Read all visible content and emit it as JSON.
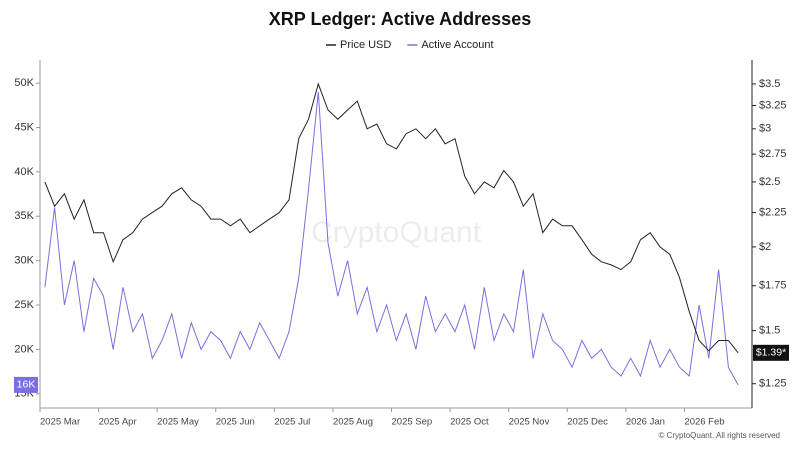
{
  "chart_data": {
    "type": "line",
    "title": "XRP Ledger: Active Addresses",
    "watermark": "CryptoQuant",
    "copyright": "© CryptoQuant. All rights reserved",
    "categories": [
      "2025 Mar",
      null,
      null,
      null,
      null,
      null,
      "2025 Apr",
      null,
      null,
      null,
      null,
      null,
      "2025 May",
      null,
      null,
      null,
      null,
      null,
      "2025 Jun",
      null,
      null,
      null,
      null,
      null,
      "2025 Jul",
      null,
      null,
      null,
      null,
      null,
      "2025 Aug",
      null,
      null,
      null,
      null,
      null,
      "2025 Sep",
      null,
      null,
      null,
      null,
      null,
      "2025 Oct",
      null,
      null,
      null,
      null,
      null,
      "2025 Nov",
      null,
      null,
      null,
      null,
      null,
      "2025 Dec",
      null,
      null,
      null,
      null,
      null,
      "2026 Jan",
      null,
      null,
      null,
      null,
      null,
      "2026 Feb",
      null,
      null,
      null,
      null,
      null
    ],
    "series": [
      {
        "name": "Price USD",
        "color": "#222222",
        "axis": "y2",
        "values": [
          2.5,
          2.3,
          2.4,
          2.2,
          2.35,
          2.1,
          2.1,
          1.9,
          2.05,
          2.1,
          2.2,
          2.25,
          2.3,
          2.4,
          2.45,
          2.35,
          2.3,
          2.2,
          2.2,
          2.15,
          2.2,
          2.1,
          2.15,
          2.2,
          2.25,
          2.35,
          2.9,
          3.1,
          3.5,
          3.2,
          3.1,
          3.2,
          3.3,
          3.0,
          3.05,
          2.85,
          2.8,
          2.95,
          3.0,
          2.9,
          3.0,
          2.85,
          2.9,
          2.55,
          2.4,
          2.5,
          2.45,
          2.6,
          2.5,
          2.3,
          2.4,
          2.1,
          2.2,
          2.15,
          2.15,
          2.05,
          1.95,
          1.9,
          1.88,
          1.85,
          1.9,
          2.05,
          2.1,
          2.0,
          1.95,
          1.8,
          1.6,
          1.45,
          1.4,
          1.45,
          1.45,
          1.39
        ]
      },
      {
        "name": "Active Account",
        "color": "#7b6ee0",
        "values": [
          27000,
          36000,
          25000,
          30000,
          22000,
          28000,
          26000,
          20000,
          27000,
          22000,
          24000,
          19000,
          21000,
          24000,
          19000,
          23000,
          20000,
          22000,
          21000,
          19000,
          22000,
          20000,
          23000,
          21000,
          19000,
          22000,
          28000,
          38000,
          49000,
          32000,
          26000,
          30000,
          24000,
          27000,
          22000,
          25000,
          21000,
          24000,
          20000,
          26000,
          22000,
          24000,
          22000,
          25000,
          20000,
          27000,
          21000,
          24000,
          22000,
          29000,
          19000,
          24000,
          21000,
          20000,
          18000,
          21000,
          19000,
          20000,
          18000,
          17000,
          19000,
          17000,
          21000,
          18000,
          20000,
          18000,
          17000,
          25000,
          19000,
          29000,
          18000,
          16000
        ]
      }
    ],
    "ylim": [
      13400,
      52600
    ],
    "yticks": [
      {
        "value": 15000,
        "label": "15K"
      },
      {
        "value": 20000,
        "label": "20K"
      },
      {
        "value": 25000,
        "label": "25K"
      },
      {
        "value": 30000,
        "label": "30K"
      },
      {
        "value": 35000,
        "label": "35K"
      },
      {
        "value": 40000,
        "label": "40K"
      },
      {
        "value": 45000,
        "label": "45K"
      },
      {
        "value": 50000,
        "label": "50K"
      }
    ],
    "y2lim": [
      1.15,
      3.8
    ],
    "y2log": true,
    "y2ticks": [
      {
        "value": 1.25,
        "label": "$1.25"
      },
      {
        "value": 1.5,
        "label": "$1.5"
      },
      {
        "value": 1.75,
        "label": "$1.75"
      },
      {
        "value": 2,
        "label": "$2"
      },
      {
        "value": 2.25,
        "label": "$2.25"
      },
      {
        "value": 2.5,
        "label": "$2.5"
      },
      {
        "value": 2.75,
        "label": "$2.75"
      },
      {
        "value": 3,
        "label": "$3"
      },
      {
        "value": 3.25,
        "label": "$3.25"
      },
      {
        "value": 3.5,
        "label": "$3.5"
      }
    ],
    "current_labels": [
      {
        "value": 16000,
        "label": "16K",
        "axis": "y"
      },
      {
        "value": 1.39,
        "label": "$1.39*",
        "axis": "y2"
      }
    ],
    "grid": false,
    "legend": "top"
  }
}
